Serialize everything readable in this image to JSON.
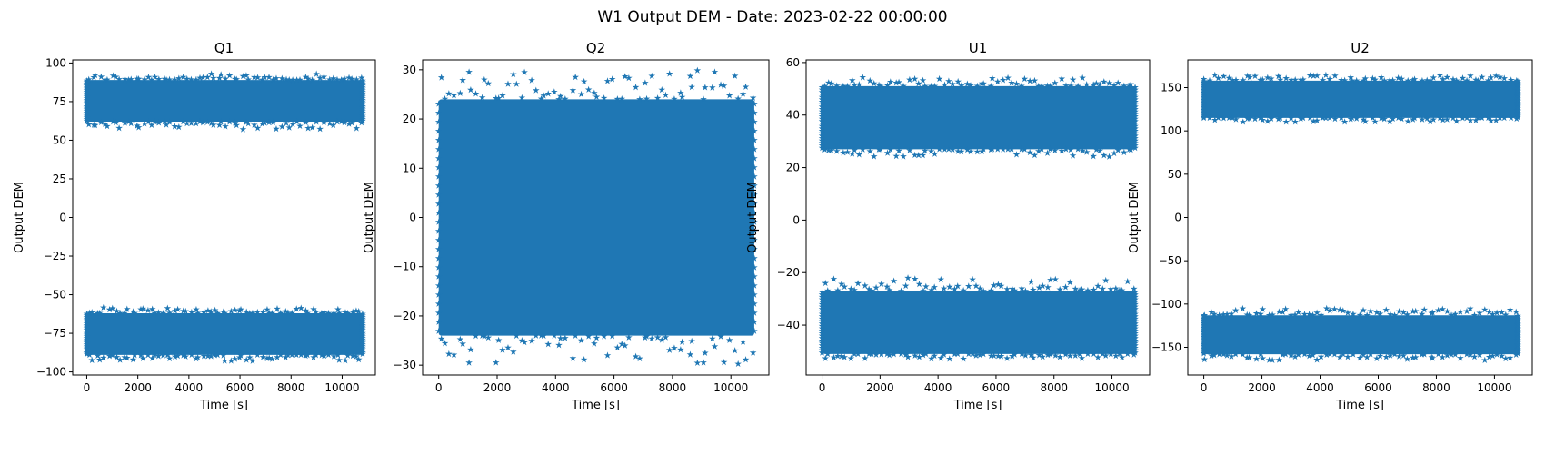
{
  "figure": {
    "title": "W1 Output DEM - Date: 2023-02-22 00:00:00",
    "marker_color": "#1f77b4"
  },
  "chart_data": [
    {
      "type": "scatter",
      "title": "Q1",
      "xlabel": "Time [s]",
      "ylabel": "Output DEM",
      "xlim": [
        -550,
        11300
      ],
      "ylim": [
        -102,
        102
      ],
      "xticks": [
        0,
        2000,
        4000,
        6000,
        8000,
        10000
      ],
      "yticks": [
        -100,
        -75,
        -50,
        -25,
        0,
        25,
        50,
        75,
        100
      ],
      "x_range": [
        0,
        10800
      ],
      "series": [
        {
          "values": {
            "center": 75,
            "core_min": 62,
            "core_max": 89,
            "extreme_min": 57,
            "extreme_max": 93
          }
        },
        {
          "values": {
            "center": -75,
            "core_min": -89,
            "core_max": -62,
            "extreme_min": -93,
            "extreme_max": -58
          }
        }
      ]
    },
    {
      "type": "scatter",
      "title": "Q2",
      "xlabel": "Time [s]",
      "ylabel": "Output DEM",
      "xlim": [
        -550,
        11300
      ],
      "ylim": [
        -32,
        32
      ],
      "xticks": [
        0,
        2000,
        4000,
        6000,
        8000,
        10000
      ],
      "yticks": [
        -30,
        -20,
        -10,
        0,
        10,
        20,
        30
      ],
      "x_range": [
        0,
        10800
      ],
      "series": [
        {
          "values": {
            "center": 0,
            "core_min": -24,
            "core_max": 24,
            "extreme_min": -30,
            "extreme_max": 30
          }
        }
      ]
    },
    {
      "type": "scatter",
      "title": "U1",
      "xlabel": "Time [s]",
      "ylabel": "Output DEM",
      "xlim": [
        -550,
        11300
      ],
      "ylim": [
        -59,
        61
      ],
      "xticks": [
        0,
        2000,
        4000,
        6000,
        8000,
        10000
      ],
      "yticks": [
        -40,
        -20,
        0,
        20,
        40,
        60
      ],
      "x_range": [
        0,
        10800
      ],
      "series": [
        {
          "values": {
            "center": 38,
            "core_min": 27,
            "core_max": 51,
            "extreme_min": 24,
            "extreme_max": 55
          }
        },
        {
          "values": {
            "center": -38,
            "core_min": -51,
            "core_max": -27,
            "extreme_min": -53,
            "extreme_max": -22
          }
        }
      ]
    },
    {
      "type": "scatter",
      "title": "U2",
      "xlabel": "Time [s]",
      "ylabel": "Output DEM",
      "xlim": [
        -550,
        11300
      ],
      "ylim": [
        -182,
        182
      ],
      "xticks": [
        0,
        2000,
        4000,
        6000,
        8000,
        10000
      ],
      "yticks": [
        -150,
        -100,
        -50,
        0,
        50,
        100,
        150
      ],
      "x_range": [
        0,
        10800
      ],
      "series": [
        {
          "values": {
            "center": 135,
            "core_min": 115,
            "core_max": 158,
            "extreme_min": 110,
            "extreme_max": 165
          }
        },
        {
          "values": {
            "center": -135,
            "core_min": -158,
            "core_max": -113,
            "extreme_min": -165,
            "extreme_max": -105
          }
        }
      ]
    }
  ]
}
